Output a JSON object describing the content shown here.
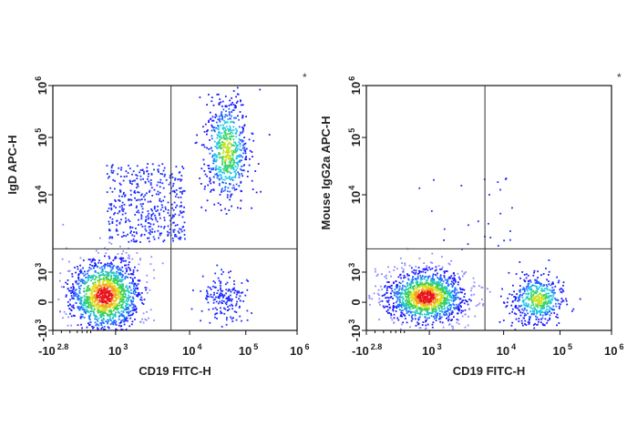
{
  "chart_data": [
    {
      "type": "scatter",
      "subtype": "flow-cytometry-density-dot-plot",
      "xlabel": "CD19 FITC-H",
      "ylabel": "IgD APC-H",
      "marker": "*",
      "x_scale": "biexponential",
      "y_scale": "biexponential",
      "xlim": [
        -631,
        1000000
      ],
      "ylim": [
        -1000,
        1000000
      ],
      "x_ticks": [
        {
          "base": "-10",
          "exp": "2.8",
          "value": -631
        },
        {
          "base": "10",
          "exp": "3",
          "value": 1000
        },
        {
          "base": "10",
          "exp": "4",
          "value": 10000
        },
        {
          "base": "10",
          "exp": "5",
          "value": 100000
        },
        {
          "base": "10",
          "exp": "6",
          "value": 1000000
        }
      ],
      "y_ticks": [
        {
          "base": "-10",
          "exp": "3",
          "value": -1000
        },
        {
          "base": "0",
          "exp": "",
          "value": 0
        },
        {
          "base": "10",
          "exp": "3",
          "value": 1000
        },
        {
          "base": "10",
          "exp": "4",
          "value": 10000
        },
        {
          "base": "10",
          "exp": "5",
          "value": 100000
        },
        {
          "base": "10",
          "exp": "6",
          "value": 1000000
        }
      ],
      "quadrant_gate": {
        "x": 5600,
        "y": 2000
      },
      "populations": [
        {
          "x_center": 700,
          "y_center": 250,
          "events": 1400,
          "peak_color": "#e8141c"
        },
        {
          "x_center": 45000,
          "y_center": 60000,
          "events": 650,
          "peak_color": "#c8d820"
        },
        {
          "x_center": 40000,
          "y_center": 150,
          "events": 170,
          "peak_color": "#2a3cff"
        },
        {
          "x_center": 2500,
          "y_center": 8000,
          "events": 420,
          "peak_color": "#1020ff"
        }
      ],
      "grid": false
    },
    {
      "type": "scatter",
      "subtype": "flow-cytometry-density-dot-plot",
      "xlabel": "CD19 FITC-H",
      "ylabel": "Mouse IgG2a APC-H",
      "marker": "*",
      "x_scale": "biexponential",
      "y_scale": "biexponential",
      "xlim": [
        -631,
        1000000
      ],
      "ylim": [
        -1000,
        1000000
      ],
      "x_ticks": [
        {
          "base": "-10",
          "exp": "2.8",
          "value": -631
        },
        {
          "base": "10",
          "exp": "3",
          "value": 1000
        },
        {
          "base": "10",
          "exp": "4",
          "value": 10000
        },
        {
          "base": "10",
          "exp": "5",
          "value": 100000
        },
        {
          "base": "10",
          "exp": "6",
          "value": 1000000
        }
      ],
      "y_ticks": [
        {
          "base": "-10",
          "exp": "3",
          "value": -1000
        },
        {
          "base": "0",
          "exp": "",
          "value": 0
        },
        {
          "base": "10",
          "exp": "3",
          "value": 1000
        },
        {
          "base": "10",
          "exp": "4",
          "value": 10000
        },
        {
          "base": "10",
          "exp": "5",
          "value": 100000
        },
        {
          "base": "10",
          "exp": "6",
          "value": 1000000
        }
      ],
      "quadrant_gate": {
        "x": 5600,
        "y": 2000
      },
      "populations": [
        {
          "x_center": 900,
          "y_center": 200,
          "events": 1400,
          "peak_color": "#e8141c"
        },
        {
          "x_center": 40000,
          "y_center": 120,
          "events": 500,
          "peak_color": "#30e090"
        },
        {
          "x_center": 3000,
          "y_center": 6000,
          "events": 25,
          "peak_color": "#1020ff"
        }
      ],
      "grid": false
    }
  ]
}
